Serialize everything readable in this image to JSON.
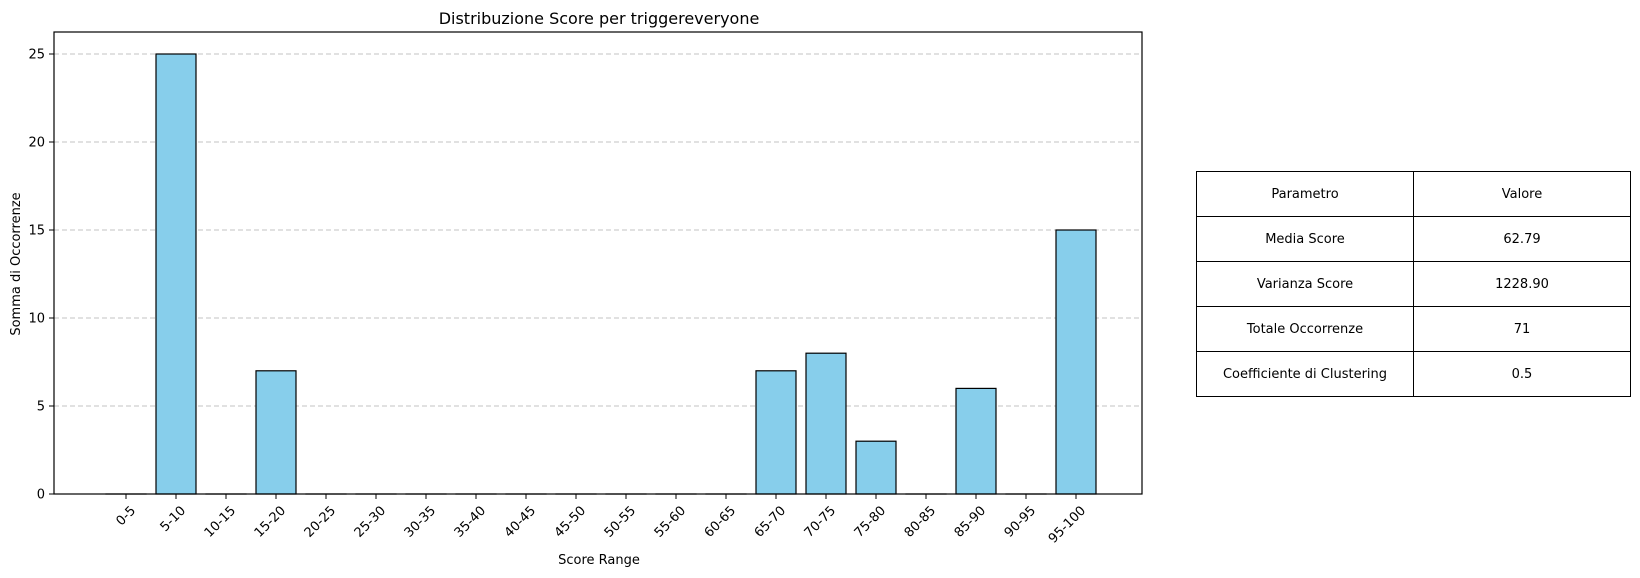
{
  "chart_data": {
    "type": "bar",
    "title": "Distribuzione Score per triggereveryone",
    "xlabel": "Score Range",
    "ylabel": "Somma di Occorrenze",
    "categories": [
      "0-5",
      "5-10",
      "10-15",
      "15-20",
      "20-25",
      "25-30",
      "30-35",
      "35-40",
      "40-45",
      "45-50",
      "50-55",
      "55-60",
      "60-65",
      "65-70",
      "70-75",
      "75-80",
      "80-85",
      "85-90",
      "90-95",
      "95-100"
    ],
    "values": [
      0,
      25,
      0,
      7,
      0,
      0,
      0,
      0,
      0,
      0,
      0,
      0,
      0,
      7,
      8,
      3,
      0,
      6,
      0,
      15
    ],
    "ylim": [
      0,
      26.25
    ],
    "yticks": [
      0,
      5,
      10,
      15,
      20,
      25
    ],
    "grid": "y-dashed",
    "bar_color": "#87CEEB",
    "edge_color": "#000000"
  },
  "table": {
    "header": [
      "Parametro",
      "Valore"
    ],
    "rows": [
      [
        "Media Score",
        "62.79"
      ],
      [
        "Varianza Score",
        "1228.90"
      ],
      [
        "Totale Occorrenze",
        "71"
      ],
      [
        "Coefficiente di Clustering",
        "0.5"
      ]
    ]
  }
}
